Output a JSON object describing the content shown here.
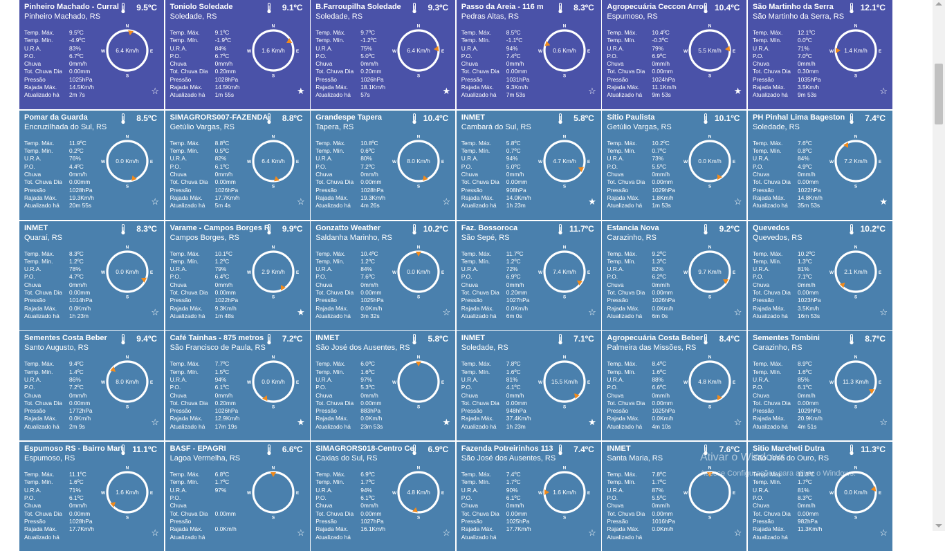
{
  "colors": {
    "purple": "#4a52a8",
    "blue": "#4a80ad",
    "needle": "#f08a1c"
  },
  "labels": {
    "tmax": "Temp. Máx.",
    "tmin": "Temp. Mín.",
    "ura": "U.R.A.",
    "po": "P.O.",
    "chuva": "Chuva",
    "tot": "Tot. Chuva Dia",
    "pressao": "Pressão",
    "rajada": "Rajada Máx.",
    "atual": "Atualizado há"
  },
  "compass_letters": {
    "n": "N",
    "s": "S",
    "e": "E",
    "w": "W"
  },
  "cards": [
    {
      "title": "Pinheiro Machado - Curral",
      "sub": "Pinheiro Machado, RS",
      "temp": "9.5ºC",
      "tmax": "9.5ºC",
      "tmin": "-4.9ºC",
      "ura": "83%",
      "po": "6.7ºC",
      "chuva": "0mm/h",
      "tot": "0.00mm",
      "pressao": "1025hPa",
      "rajada": "14.5Km/h",
      "atual": "2m 7s",
      "wind": "6.4 Km/h",
      "dir": 10,
      "fav": false,
      "bg": "purple"
    },
    {
      "title": "Toniolo Soledade",
      "sub": "Soledade, RS",
      "temp": "9.1ºC",
      "tmax": "9.1ºC",
      "tmin": "-1.9ºC",
      "ura": "84%",
      "po": "6.7ºC",
      "chuva": "0mm/h",
      "tot": "0.20mm",
      "pressao": "1028hPa",
      "rajada": "14.5Km/h",
      "atual": "1m 55s",
      "wind": "1.6 Km/h",
      "dir": 60,
      "fav": true,
      "bg": "purple"
    },
    {
      "title": "B.Farroupilha Soledade",
      "sub": "Soledade, RS",
      "temp": "9.3ºC",
      "tmax": "9.7ºC",
      "tmin": "-1.2ºC",
      "ura": "75%",
      "po": "5.0ºC",
      "chuva": "0mm/h",
      "tot": "0.20mm",
      "pressao": "1026hPa",
      "rajada": "18.1Km/h",
      "atual": "57s",
      "wind": "6.4 Km/h",
      "dir": 85,
      "fav": true,
      "bg": "purple"
    },
    {
      "title": "Passo da Areia - 116 m",
      "sub": "Pedras Altas, RS",
      "temp": "8.3ºC",
      "tmax": "8.5ºC",
      "tmin": "-1.1ºC",
      "ura": "94%",
      "po": "7.4ºC",
      "chuva": "0mm/h",
      "tot": "0.00mm",
      "pressao": "1031hPa",
      "rajada": "9.3Km/h",
      "atual": "7m 53s",
      "wind": "0.6 Km/h",
      "dir": 290,
      "fav": false,
      "bg": "purple"
    },
    {
      "title": "Agropecuária Ceccon Arroi",
      "sub": "Espumoso, RS",
      "temp": "10.4ºC",
      "tmax": "10.4ºC",
      "tmin": "-0.3ºC",
      "ura": "79%",
      "po": "6.9ºC",
      "chuva": "0mm/h",
      "tot": "0.00mm",
      "pressao": "1024hPa",
      "rajada": "11.1Km/h",
      "atual": "9m 53s",
      "wind": "5.5 Km/h",
      "dir": 85,
      "fav": true,
      "bg": "purple"
    },
    {
      "title": "São Martinho da Serra",
      "sub": "São Martinho da Serra, RS",
      "temp": "12.1ºC",
      "tmax": "12.1ºC",
      "tmin": "0.0ºC",
      "ura": "71%",
      "po": "7.0ºC",
      "chuva": "0mm/h",
      "tot": "0.30mm",
      "pressao": "1035hPa",
      "rajada": "3.5Km/h",
      "atual": "9m 53s",
      "wind": "1.4 Km/h",
      "dir": 270,
      "fav": false,
      "bg": "purple"
    },
    {
      "title": "Pomar da Guarda",
      "sub": "Encruzilhada do Sul, RS",
      "temp": "8.5ºC",
      "tmax": "11.9ºC",
      "tmin": "0.2ºC",
      "ura": "76%",
      "po": "4.4ºC",
      "chuva": "0mm/h",
      "tot": "0.00mm",
      "pressao": "1028hPa",
      "rajada": "19.3Km/h",
      "atual": "20m 55s",
      "wind": "0.0 Km/h",
      "dir": 160,
      "fav": false,
      "bg": "blue"
    },
    {
      "title": "SIMAGRORS007-FAZENDA",
      "sub": "Getúlio Vargas, RS",
      "temp": "8.8ºC",
      "tmax": "8.8ºC",
      "tmin": "0.5ºC",
      "ura": "82%",
      "po": "6.1ºC",
      "chuva": "0mm/h",
      "tot": "0.00mm",
      "pressao": "1026hPa",
      "rajada": "17.7Km/h",
      "atual": "5m 4s",
      "wind": "6.4 Km/h",
      "dir": 170,
      "fav": false,
      "bg": "blue"
    },
    {
      "title": "Grandespe Tapera",
      "sub": "Tapera, RS",
      "temp": "10.4ºC",
      "tmax": "10.8ºC",
      "tmin": "0.6ºC",
      "ura": "80%",
      "po": "7.2ºC",
      "chuva": "0mm/h",
      "tot": "0.00mm",
      "pressao": "1028hPa",
      "rajada": "19.3Km/h",
      "atual": "4m 26s",
      "wind": "8.0 Km/h",
      "dir": 160,
      "fav": false,
      "bg": "blue"
    },
    {
      "title": "INMET",
      "sub": "Cambará do Sul, RS",
      "temp": "5.8ºC",
      "tmax": "5.8ºC",
      "tmin": "0.7ºC",
      "ura": "94%",
      "po": "5.0ºC",
      "chuva": "0mm/h",
      "tot": "0.00mm",
      "pressao": "908hPa",
      "rajada": "14.0Km/h",
      "atual": "1h 23m",
      "wind": "4.7 Km/h",
      "dir": 115,
      "fav": true,
      "bg": "blue"
    },
    {
      "title": "Sítio Paulista",
      "sub": "Getúlio Vargas, RS",
      "temp": "10.1ºC",
      "tmax": "10.2ºC",
      "tmin": "0.7ºC",
      "ura": "73%",
      "po": "5.5ºC",
      "chuva": "0mm/h",
      "tot": "0.00mm",
      "pressao": "1029hPa",
      "rajada": "1.8Km/h",
      "atual": "1m 53s",
      "wind": "0.0 Km/h",
      "dir": 150,
      "fav": false,
      "bg": "blue"
    },
    {
      "title": "PH Pinhal Lima Bageston",
      "sub": "Soledade, RS",
      "temp": "7.4ºC",
      "tmax": "7.6ºC",
      "tmin": "0.8ºC",
      "ura": "84%",
      "po": "4.9ºC",
      "chuva": "0mm/h",
      "tot": "0.00mm",
      "pressao": "1022hPa",
      "rajada": "14.8Km/h",
      "atual": "35m 53s",
      "wind": "7.2 Km/h",
      "dir": 330,
      "fav": true,
      "bg": "blue"
    },
    {
      "title": "INMET",
      "sub": "Quaraí, RS",
      "temp": "8.3ºC",
      "tmax": "8.3ºC",
      "tmin": "1.2ºC",
      "ura": "78%",
      "po": "4.7ºC",
      "chuva": "0mm/h",
      "tot": "0.00mm",
      "pressao": "1014hPa",
      "rajada": "0.0Km/h",
      "atual": "1h 23m",
      "wind": "0.0 Km/h",
      "dir": 115,
      "fav": false,
      "bg": "blue"
    },
    {
      "title": "Varame - Campos Borges R",
      "sub": "Campos Borges, RS",
      "temp": "9.9ºC",
      "tmax": "10.1ºC",
      "tmin": "1.2ºC",
      "ura": "79%",
      "po": "6.4ºC",
      "chuva": "0mm/h",
      "tot": "0.00mm",
      "pressao": "1022hPa",
      "rajada": "9.3Km/h",
      "atual": "1m 48s",
      "wind": "2.9 Km/h",
      "dir": 150,
      "fav": true,
      "bg": "blue"
    },
    {
      "title": "Gonzatto Weather",
      "sub": "Saldanha Marinho, RS",
      "temp": "10.2ºC",
      "tmax": "10.4ºC",
      "tmin": "1.2ºC",
      "ura": "84%",
      "po": "7.6ºC",
      "chuva": "0mm/h",
      "tot": "0.00mm",
      "pressao": "1025hPa",
      "rajada": "0.0Km/h",
      "atual": "3m 32s",
      "wind": "0.0 Km/h",
      "dir": 0,
      "fav": false,
      "bg": "blue"
    },
    {
      "title": "Faz. Bossoroca",
      "sub": "São Sepé, RS",
      "temp": "11.7ºC",
      "tmax": "11.7ºC",
      "tmin": "1.2ºC",
      "ura": "72%",
      "po": "6.9ºC",
      "chuva": "0mm/h",
      "tot": "0.20mm",
      "pressao": "1027hPa",
      "rajada": "0.0Km/h",
      "atual": "6m 0s",
      "wind": "7.4 Km/h",
      "dir": 125,
      "fav": false,
      "bg": "blue"
    },
    {
      "title": "Estancia Nova",
      "sub": "Carazinho, RS",
      "temp": "9.2ºC",
      "tmax": "9.2ºC",
      "tmin": "1.3ºC",
      "ura": "82%",
      "po": "6.2ºC",
      "chuva": "0mm/h",
      "tot": "0.00mm",
      "pressao": "1026hPa",
      "rajada": "0.0Km/h",
      "atual": "6m 0s",
      "wind": "9.7 Km/h",
      "dir": 120,
      "fav": false,
      "bg": "blue"
    },
    {
      "title": "Quevedos",
      "sub": "Quevedos, RS",
      "temp": "10.2ºC",
      "tmax": "10.2ºC",
      "tmin": "1.3ºC",
      "ura": "81%",
      "po": "7.1ºC",
      "chuva": "0mm/h",
      "tot": "0.00mm",
      "pressao": "1023hPa",
      "rajada": "3.5Km/h",
      "atual": "16m 53s",
      "wind": "2.1 Km/h",
      "dir": 225,
      "fav": false,
      "bg": "blue"
    },
    {
      "title": "Sementes Costa Beber",
      "sub": "Santo Augusto, RS",
      "temp": "9.4ºC",
      "tmax": "9.4ºC",
      "tmin": "1.4ºC",
      "ura": "86%",
      "po": "7.2ºC",
      "chuva": "0mm/h",
      "tot": "0.00mm",
      "pressao": "1772hPa",
      "rajada": "0.0Km/h",
      "atual": "2m 9s",
      "wind": "8.0 Km/h",
      "dir": 310,
      "fav": false,
      "bg": "blue"
    },
    {
      "title": "Café Tainhas - 875 metros",
      "sub": "São Francisco de Paula, RS",
      "temp": "7.2ºC",
      "tmax": "7.7ºC",
      "tmin": "1.5ºC",
      "ura": "94%",
      "po": "6.1ºC",
      "chuva": "0mm/h",
      "tot": "0.20mm",
      "pressao": "1026hPa",
      "rajada": "12.9Km/h",
      "atual": "17m 19s",
      "wind": "0.0 Km/h",
      "dir": 205,
      "fav": true,
      "bg": "blue"
    },
    {
      "title": "INMET",
      "sub": "São José dos Ausentes, RS",
      "temp": "5.8ºC",
      "tmax": "6.0ºC",
      "tmin": "1.6ºC",
      "ura": "97%",
      "po": "5.3ºC",
      "chuva": "0mm/h",
      "tot": "0.00mm",
      "pressao": "883hPa",
      "rajada": "0.0Km/h",
      "atual": "23m 53s",
      "wind": "",
      "dir": 0,
      "fav": true,
      "bg": "blue"
    },
    {
      "title": "INMET",
      "sub": "Soledade, RS",
      "temp": "7.1ºC",
      "tmax": "7.8ºC",
      "tmin": "1.6ºC",
      "ura": "81%",
      "po": "4.1ºC",
      "chuva": "0mm/h",
      "tot": "0.00mm",
      "pressao": "948hPa",
      "rajada": "37.4Km/h",
      "atual": "1h 23m",
      "wind": "15.5 Km/h",
      "dir": 140,
      "fav": true,
      "bg": "blue"
    },
    {
      "title": "Agropecuária Costa Beber",
      "sub": "Palmeira das Missões, RS",
      "temp": "8.4ºC",
      "tmax": "8.4ºC",
      "tmin": "1.6ºC",
      "ura": "88%",
      "po": "6.6ºC",
      "chuva": "0mm/h",
      "tot": "0.00mm",
      "pressao": "1025hPa",
      "rajada": "0.0Km/h",
      "atual": "4m 10s",
      "wind": "4.8 Km/h",
      "dir": 150,
      "fav": false,
      "bg": "blue"
    },
    {
      "title": "Sementes Tombini",
      "sub": "Carazinho, RS",
      "temp": "8.7ºC",
      "tmax": "8.9ºC",
      "tmin": "1.6ºC",
      "ura": "85%",
      "po": "6.1ºC",
      "chuva": "0mm/h",
      "tot": "0.00mm",
      "pressao": "1029hPa",
      "rajada": "20.9Km/h",
      "atual": "4m 51s",
      "wind": "11.3 Km/h",
      "dir": 120,
      "fav": false,
      "bg": "blue"
    },
    {
      "title": "Espumoso RS - Bairro Mart",
      "sub": "Espumoso, RS",
      "temp": "11.1ºC",
      "tmax": "11.1ºC",
      "tmin": "1.6ºC",
      "ura": "71%",
      "po": "6.1ºC",
      "chuva": "0mm/h",
      "tot": "0.00mm",
      "pressao": "1028hPa",
      "rajada": "17.7Km/h",
      "atual": "",
      "wind": "1.6 Km/h",
      "dir": 230,
      "fav": false,
      "bg": "blue"
    },
    {
      "title": "BASF - EPAGRI",
      "sub": "Lagoa Vermelha, RS",
      "temp": "6.6ºC",
      "tmax": "6.8ºC",
      "tmin": "1.7ºC",
      "ura": "97%",
      "po": "",
      "chuva": "",
      "tot": "0.00mm",
      "pressao": "",
      "rajada": "0.0Km/h",
      "atual": "",
      "wind": "",
      "dir": 0,
      "fav": false,
      "bg": "blue"
    },
    {
      "title": "SIMAGRORS018-Centro Ce",
      "sub": "Caxias do Sul, RS",
      "temp": "6.9ºC",
      "tmax": "6.9ºC",
      "tmin": "1.7ºC",
      "ura": "94%",
      "po": "6.1ºC",
      "chuva": "0mm/h",
      "tot": "0.00mm",
      "pressao": "1027hPa",
      "rajada": "16.1Km/h",
      "atual": "",
      "wind": "4.8 Km/h",
      "dir": 190,
      "fav": false,
      "bg": "blue"
    },
    {
      "title": "Fazenda Potreirinhos 113",
      "sub": "São José dos Ausentes, RS",
      "temp": "7.4ºC",
      "tmax": "7.4ºC",
      "tmin": "1.7ºC",
      "ura": "90%",
      "po": "6.1ºC",
      "chuva": "0mm/h",
      "tot": "0.00mm",
      "pressao": "1025hPa",
      "rajada": "17.7Km/h",
      "atual": "",
      "wind": "1.6 Km/h",
      "dir": 270,
      "fav": false,
      "bg": "blue"
    },
    {
      "title": "INMET",
      "sub": "Santa Maria, RS",
      "temp": "7.6ºC",
      "tmax": "7.8ºC",
      "tmin": "1.7ºC",
      "ura": "87%",
      "po": "5.5ºC",
      "chuva": "0mm/h",
      "tot": "0.00mm",
      "pressao": "1016hPa",
      "rajada": "0.0Km/h",
      "atual": "",
      "wind": "",
      "dir": 0,
      "fav": false,
      "bg": "blue"
    },
    {
      "title": "Sitio Marcheti Dutra",
      "sub": "São José do Ouro, RS",
      "temp": "11.3ºC",
      "tmax": "11.3ºC",
      "tmin": "1.7ºC",
      "ura": "81%",
      "po": "8.3ºC",
      "chuva": "0mm/h",
      "tot": "0.00mm",
      "pressao": "982hPa",
      "rajada": "11.3Km/h",
      "atual": "",
      "wind": "0.0 Km/h",
      "dir": 80,
      "fav": false,
      "bg": "blue"
    }
  ],
  "watermark": {
    "line1": "Ativar o Windows",
    "line2": "Acesse Configurações para ativar o Windows."
  }
}
